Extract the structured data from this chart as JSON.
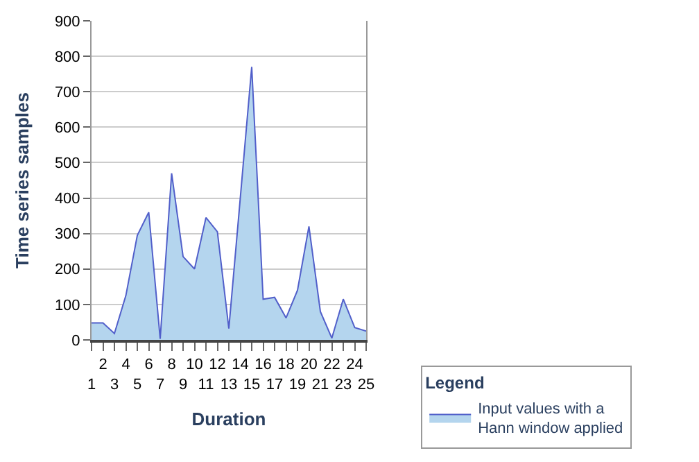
{
  "chart_data": {
    "type": "area",
    "xlabel": "Duration",
    "ylabel": "Time series samples",
    "legend_title": "Legend",
    "legend": "bottom right",
    "categories": [
      "1",
      "2",
      "3",
      "4",
      "5",
      "6",
      "7",
      "8",
      "9",
      "10",
      "11",
      "12",
      "13",
      "14",
      "15",
      "16",
      "17",
      "18",
      "19",
      "20",
      "21",
      "22",
      "23",
      "24",
      "25"
    ],
    "series": [
      {
        "name": "Input values with a Hann window applied",
        "color": "#b4d5ee",
        "values": [
          48,
          48,
          18,
          125,
          295,
          360,
          3,
          470,
          235,
          200,
          345,
          305,
          32,
          400,
          770,
          115,
          120,
          62,
          140,
          320,
          80,
          5,
          115,
          35,
          25
        ]
      }
    ],
    "ylim": [
      0,
      900
    ],
    "yticks": [
      0,
      100,
      200,
      300,
      400,
      500,
      600,
      700,
      800,
      900
    ],
    "grid": "y"
  }
}
